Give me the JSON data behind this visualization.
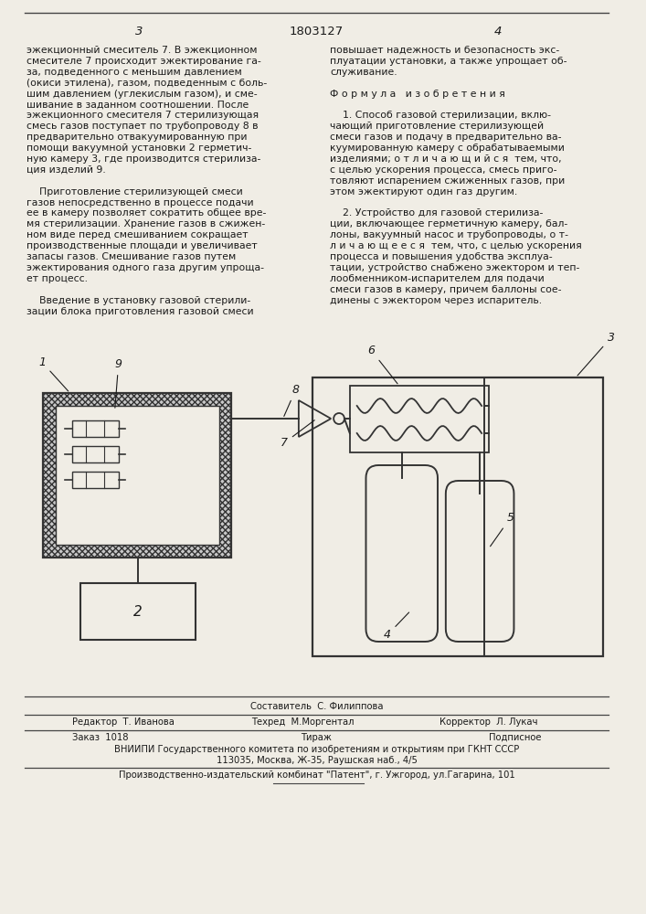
{
  "page_color": "#f0ede5",
  "text_color": "#1a1a1a",
  "page_num_left": "3",
  "page_num_center": "1803127",
  "page_num_right": "4",
  "left_col_text": [
    "эжекционный смеситель 7. В эжекционном",
    "смесителе 7 происходит эжектирование га-",
    "за, подведенного с меньшим давлением",
    "(окиси этилена), газом, подведенным с боль-",
    "шим давлением (углекислым газом), и сме-",
    "шивание в заданном соотношении. После",
    "эжекционного смесителя 7 стерилизующая",
    "смесь газов поступает по трубопроводу 8 в",
    "предварительно отвакуумированную при",
    "помощи вакуумной установки 2 герметич-",
    "ную камеру 3, где производится стерилиза-",
    "ция изделий 9.",
    "",
    "    Приготовление стерилизующей смеси",
    "газов непосредственно в процессе подачи",
    "ее в камеру позволяет сократить общее вре-",
    "мя стерилизации. Хранение газов в сжижен-",
    "ном виде перед смешиванием сокращает",
    "производственные площади и увеличивает",
    "запасы газов. Смешивание газов путем",
    "эжектирования одного газа другим упрощa-",
    "ет процесс.",
    "",
    "    Введение в установку газовой стерили-",
    "зации блока приготовления газовой смеси"
  ],
  "right_col_text": [
    "повышает надежность и безопасность экс-",
    "плуатации установки, а также упрощает об-",
    "служивание.",
    "",
    "Ф о р м у л а   и з о б р е т е н и я",
    "",
    "    1. Способ газовой стерилизации, вклю-",
    "чающий приготовление стерилизующей",
    "смеси газов и подачу в предварительно ва-",
    "куумированную камеру с обрабатываемыми",
    "изделиями; о т л и ч а ю щ и й с я  тем, что,",
    "с целью ускорения процесса, смесь приго-",
    "товляют испарением сжиженных газов, при",
    "этом эжектируют один газ другим.",
    "",
    "    2. Устройство для газовой стерилиза-",
    "ции, включающее герметичную камеру, бал-",
    "лоны, вакуумный насос и трубопроводы, о т-",
    "л и ч а ю щ е е с я  тем, что, с целью ускорения",
    "процесса и повышения удобства эксплуа-",
    "тации, устройство снабжено эжектором и теп-",
    "лообменником-испарителем для подачи",
    "смеси газов в камеру, причем баллоны сое-",
    "динены с эжектором через испаритель.",
    ""
  ],
  "footer_editor": "Редактор  Т. Иванова",
  "footer_compiler": "Составитель  С. Филиппова",
  "footer_techred": "Техред  М.Моргентал",
  "footer_corrector": "Корректор  Л. Лукач",
  "footer_order": "Заказ  1018",
  "footer_tirazh": "Тираж",
  "footer_podp": "Подписное",
  "footer_vniipи": "ВНИИПИ Государственного комитета по изобретениям и открытиям при ГКНТ СССР",
  "footer_addr": "113035, Москва, Ж-35, Раушская наб., 4/5",
  "footer_patent": "Производственно-издательский комбинат \"Патент\", г. Ужгород, ул.Гагарина, 101"
}
